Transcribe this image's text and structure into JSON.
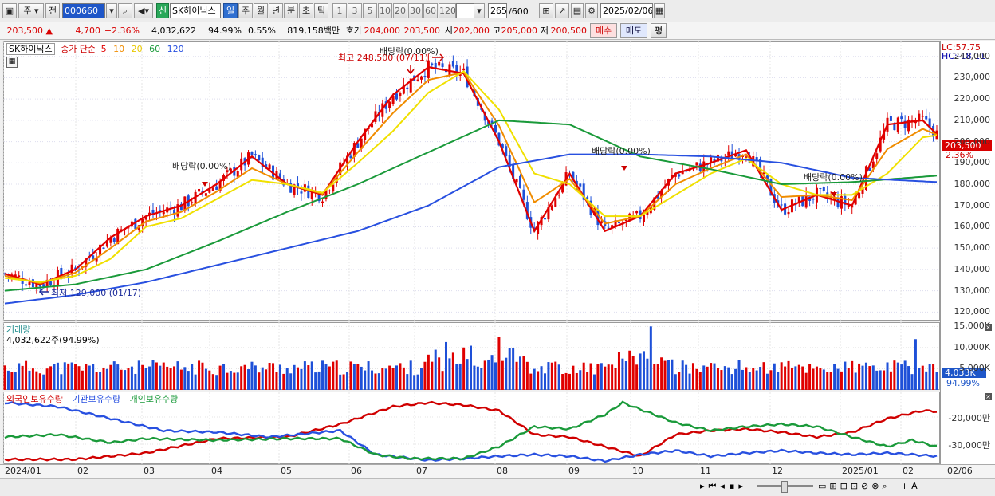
{
  "toolbar": {
    "market": "주",
    "prev": "전",
    "code": "000660",
    "stock_badge": "신",
    "stock_name": "SK하이닉스",
    "periods": [
      "일",
      "주",
      "월",
      "년",
      "분",
      "초",
      "틱"
    ],
    "intervals": [
      "1",
      "3",
      "5",
      "10",
      "20",
      "30",
      "60",
      "120"
    ],
    "count": "265",
    "count_max": "/600",
    "date": "2025/02/06"
  },
  "quote": {
    "price": "203,500",
    "change": "4,700",
    "change_pct": "+2.36%",
    "volume": "4,032,622",
    "vol_ratio": "94.99%",
    "turnover_pct": "0.55%",
    "amount": "819,158백만",
    "bid_label": "호가",
    "bid": "204,000",
    "ask": "203,500",
    "open_label": "시",
    "open": "202,000",
    "high_label": "고",
    "high": "205,000",
    "low_label": "저",
    "low": "200,500",
    "buy": "매수",
    "sell": "매도",
    "avg": "평"
  },
  "price_pane": {
    "name": "SK하이닉스",
    "ma_label": "종가 단순",
    "ma_periods": [
      "5",
      "10",
      "20",
      "60",
      "120"
    ],
    "ma_colors": [
      "#e00000",
      "#f08c00",
      "#f0e000",
      "#1a9a3a",
      "#2850e0"
    ],
    "lc": "LC:57.75",
    "hc": "HC:-18.11",
    "current_price": "203,500",
    "current_pct": "2.36%",
    "annotations": {
      "max": "최고 248,500 (07/11)",
      "min": "최저 129,000 (01/17)",
      "div1": "배당락(0.00%)",
      "div2": "배당락(0.00%)",
      "div3": "배당락(0.00%)",
      "div4": "배당락(0.00%)"
    }
  },
  "volume_pane": {
    "label": "거래량",
    "value": "4,032,622주(94.99%)",
    "current": "4,033K",
    "current_pct": "94.99%"
  },
  "holding_pane": {
    "legend": [
      "외국인보유수량",
      "기관보유수량",
      "개인보유수량"
    ],
    "colors": [
      "#d00000",
      "#2850e0",
      "#1a9a3a"
    ]
  },
  "chart_data": [
    {
      "type": "line",
      "title": "",
      "y_ticks": [
        "120,000",
        "130,000",
        "140,000",
        "150,000",
        "160,000",
        "170,000",
        "180,000",
        "190,000",
        "200,000",
        "210,000",
        "220,000",
        "230,000",
        "240,000"
      ],
      "ylim": [
        116000,
        247000
      ],
      "x_ticks": [
        "2024/01",
        "02",
        "03",
        "04",
        "05",
        "06",
        "07",
        "08",
        "09",
        "10",
        "11",
        "12",
        "2025/01",
        "02",
        "02/06"
      ],
      "series": [
        {
          "name": "5",
          "x": [
            0,
            10,
            20,
            30,
            40,
            50,
            60,
            70,
            80,
            90,
            100,
            110,
            120,
            130,
            140,
            150,
            160,
            170,
            180,
            190,
            200,
            210,
            220,
            230,
            240,
            250,
            260,
            264
          ],
          "values": [
            138000,
            133000,
            140000,
            155000,
            165000,
            170000,
            180000,
            193000,
            180000,
            175000,
            200000,
            222000,
            235000,
            232000,
            200000,
            158000,
            185000,
            158000,
            165000,
            185000,
            190000,
            196000,
            168000,
            175000,
            170000,
            208000,
            210000,
            203500
          ]
        },
        {
          "name": "20",
          "x": [
            0,
            10,
            20,
            30,
            40,
            50,
            60,
            70,
            80,
            90,
            100,
            110,
            120,
            130,
            140,
            150,
            160,
            170,
            180,
            190,
            200,
            210,
            220,
            230,
            240,
            250,
            260,
            264
          ],
          "values": [
            136000,
            134000,
            137000,
            145000,
            160000,
            164000,
            173000,
            182000,
            180000,
            176000,
            190000,
            205000,
            223000,
            233000,
            215000,
            185000,
            180000,
            165000,
            165000,
            175000,
            185000,
            192000,
            180000,
            175000,
            175000,
            185000,
            202000,
            203000
          ]
        },
        {
          "name": "60",
          "x": [
            0,
            20,
            40,
            60,
            80,
            100,
            120,
            140,
            160,
            180,
            200,
            220,
            240,
            264
          ],
          "values": [
            130000,
            133000,
            140000,
            153000,
            167000,
            180000,
            195000,
            210000,
            208000,
            193000,
            187000,
            180000,
            181000,
            184000
          ]
        },
        {
          "name": "120",
          "x": [
            0,
            20,
            40,
            60,
            80,
            100,
            120,
            140,
            160,
            180,
            200,
            220,
            240,
            264
          ],
          "values": [
            124000,
            128000,
            134000,
            142000,
            150000,
            158000,
            170000,
            188000,
            194000,
            194000,
            193000,
            190000,
            183000,
            181000
          ]
        }
      ]
    },
    {
      "type": "bar",
      "y_ticks": [
        "5,000K",
        "10,000K",
        "15,000K"
      ],
      "ylim": [
        0,
        16000
      ],
      "unit": "K"
    },
    {
      "type": "line",
      "y_ticks": [
        "-20,000만",
        "-30,000만"
      ],
      "series_names": [
        "외국인보유수량",
        "기관보유수량",
        "개인보유수량"
      ]
    }
  ]
}
